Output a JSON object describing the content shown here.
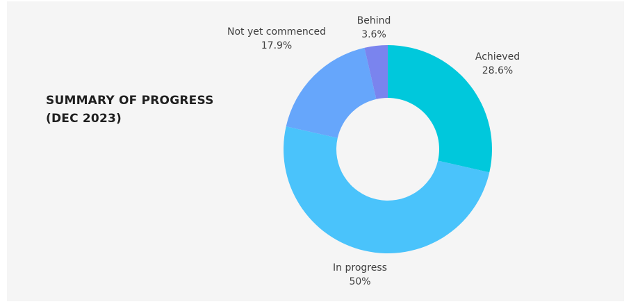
{
  "chart_data": {
    "type": "donut",
    "title_lines": [
      "SUMMARY OF PROGRESS",
      "(DEC 2023)"
    ],
    "slices": [
      {
        "name": "Achieved",
        "value": 28.6,
        "label": "28.6%",
        "color": "#00c8dc"
      },
      {
        "name": "In progress",
        "value": 50,
        "label": "50%",
        "color": "#4ac3fb"
      },
      {
        "name": "Not yet commenced",
        "value": 17.9,
        "label": "17.9%",
        "color": "#66a6fb"
      },
      {
        "name": "Behind",
        "value": 3.6,
        "label": "3.6%",
        "color": "#7a84ee"
      }
    ],
    "background_color": "#f5f5f5",
    "legend": "none"
  }
}
